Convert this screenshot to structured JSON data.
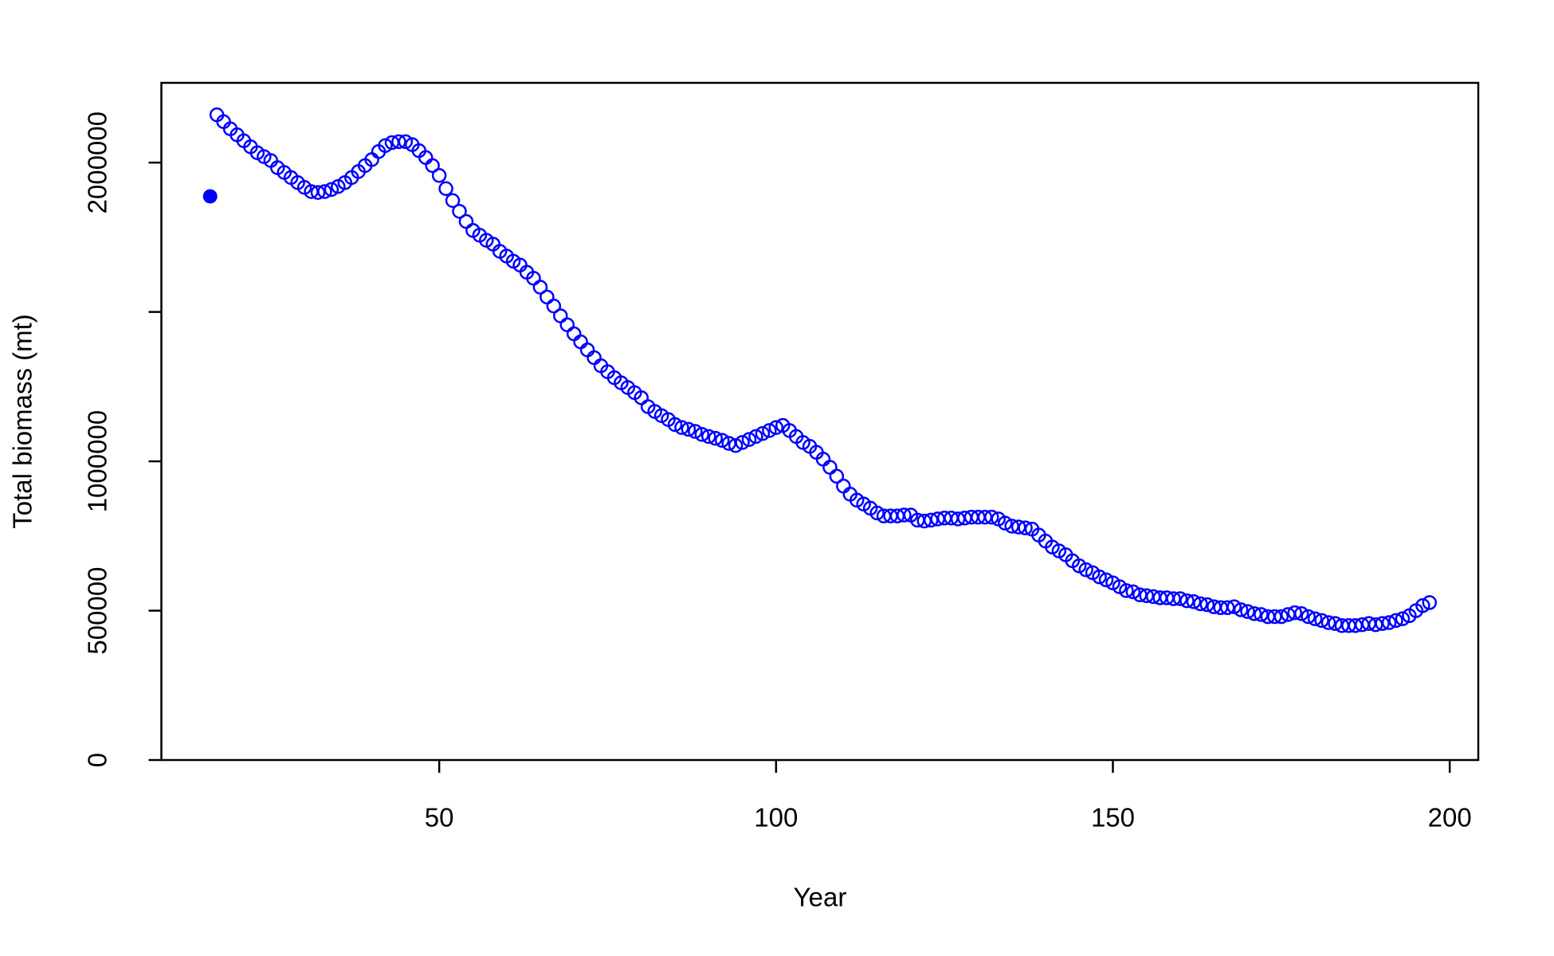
{
  "chart_data": {
    "type": "scatter",
    "xlabel": "Year",
    "ylabel": "Total biomass (mt)",
    "xlim": [
      8.76,
      204.24
    ],
    "xticks": [
      50,
      100,
      150,
      200
    ],
    "ylim": [
      0,
      2267000
    ],
    "yticks": [
      0,
      500000,
      1000000,
      2000000
    ],
    "yticks_unlabeled": [
      1500000
    ],
    "series": [
      {
        "color": "#0000ff",
        "marker": "filled",
        "x": [
          16
        ],
        "values": [
          1887000
        ]
      },
      {
        "color": "#0000ff",
        "marker": "open",
        "x": [
          17,
          18,
          19,
          20,
          21,
          22,
          23,
          24,
          25,
          26,
          27,
          28,
          29,
          30,
          31,
          32,
          33,
          34,
          35,
          36,
          37,
          38,
          39,
          40,
          41,
          42,
          43,
          44,
          45,
          46,
          47,
          48,
          49,
          50,
          51,
          52,
          53,
          54,
          55,
          56,
          57,
          58,
          59,
          60,
          61,
          62,
          63,
          64,
          65,
          66,
          67,
          68,
          69,
          70,
          71,
          72,
          73,
          74,
          75,
          76,
          77,
          78,
          79,
          80,
          81,
          82,
          83,
          84,
          85,
          86,
          87,
          88,
          89,
          90,
          91,
          92,
          93,
          94,
          95,
          96,
          97,
          98,
          99,
          100,
          101,
          102,
          103,
          104,
          105,
          106,
          107,
          108,
          109,
          110,
          111,
          112,
          113,
          114,
          115,
          116,
          117,
          118,
          119,
          120,
          121,
          122,
          123,
          124,
          125,
          126,
          127,
          128,
          129,
          130,
          131,
          132,
          133,
          134,
          135,
          136,
          137,
          138,
          139,
          140,
          141,
          142,
          143,
          144,
          145,
          146,
          147,
          148,
          149,
          150,
          151,
          152,
          153,
          154,
          155,
          156,
          157,
          158,
          159,
          160,
          161,
          162,
          163,
          164,
          165,
          166,
          167,
          168,
          169,
          170,
          171,
          172,
          173,
          174,
          175,
          176,
          177,
          178,
          179,
          180,
          181,
          182,
          183,
          184,
          185,
          186,
          187,
          188,
          189,
          190,
          191,
          192,
          193,
          194,
          195,
          196,
          197
        ],
        "values": [
          2160000,
          2137000,
          2113000,
          2093000,
          2073000,
          2053000,
          2033000,
          2020000,
          2007000,
          1983000,
          1967000,
          1950000,
          1933000,
          1917000,
          1903000,
          1900000,
          1903000,
          1910000,
          1920000,
          1933000,
          1950000,
          1970000,
          1990000,
          2010000,
          2037000,
          2057000,
          2067000,
          2070000,
          2070000,
          2060000,
          2040000,
          2017000,
          1990000,
          1957000,
          1913000,
          1873000,
          1837000,
          1803000,
          1773000,
          1757000,
          1740000,
          1727000,
          1703000,
          1687000,
          1670000,
          1657000,
          1633000,
          1613000,
          1583000,
          1550000,
          1520000,
          1487000,
          1457000,
          1427000,
          1400000,
          1373000,
          1347000,
          1320000,
          1300000,
          1280000,
          1263000,
          1247000,
          1230000,
          1213000,
          1183000,
          1167000,
          1153000,
          1140000,
          1123000,
          1113000,
          1107000,
          1100000,
          1090000,
          1083000,
          1077000,
          1070000,
          1060000,
          1053000,
          1063000,
          1073000,
          1083000,
          1093000,
          1103000,
          1113000,
          1120000,
          1103000,
          1083000,
          1063000,
          1050000,
          1030000,
          1007000,
          980000,
          950000,
          917000,
          890000,
          870000,
          857000,
          843000,
          827000,
          817000,
          817000,
          817000,
          820000,
          820000,
          803000,
          800000,
          803000,
          807000,
          810000,
          810000,
          807000,
          810000,
          813000,
          813000,
          813000,
          813000,
          807000,
          793000,
          783000,
          780000,
          777000,
          773000,
          753000,
          733000,
          713000,
          700000,
          687000,
          667000,
          650000,
          637000,
          627000,
          613000,
          603000,
          593000,
          580000,
          567000,
          563000,
          553000,
          550000,
          547000,
          543000,
          543000,
          540000,
          540000,
          533000,
          530000,
          523000,
          520000,
          513000,
          510000,
          510000,
          513000,
          503000,
          497000,
          490000,
          487000,
          480000,
          480000,
          480000,
          487000,
          493000,
          490000,
          480000,
          473000,
          467000,
          460000,
          457000,
          450000,
          450000,
          450000,
          453000,
          457000,
          453000,
          457000,
          460000,
          467000,
          473000,
          483000,
          500000,
          517000,
          527000
        ]
      }
    ]
  }
}
